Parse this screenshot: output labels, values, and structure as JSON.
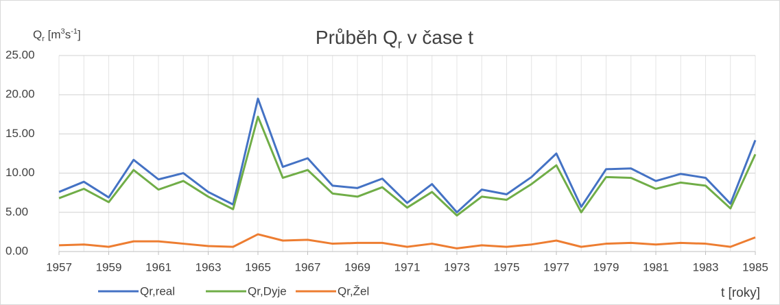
{
  "chart_data": {
    "type": "line",
    "title": [
      {
        "text": "Průběh Q"
      },
      {
        "text": "r",
        "sub": true
      },
      {
        "text": " v čase t"
      }
    ],
    "y_label": [
      {
        "text": "Q"
      },
      {
        "text": "r",
        "sub": true
      },
      {
        "text": " [m"
      },
      {
        "text": "3",
        "sup": true
      },
      {
        "text": "s"
      },
      {
        "text": "-1",
        "sup": true
      },
      {
        "text": "]"
      }
    ],
    "x_label": "t [roky]",
    "x": [
      1957,
      1958,
      1959,
      1960,
      1961,
      1962,
      1963,
      1964,
      1965,
      1966,
      1967,
      1968,
      1969,
      1970,
      1971,
      1972,
      1973,
      1974,
      1975,
      1976,
      1977,
      1978,
      1979,
      1980,
      1981,
      1982,
      1983,
      1984,
      1985
    ],
    "series": [
      {
        "name": "Qr,real",
        "color": "#4472c4",
        "values": [
          7.6,
          8.9,
          6.9,
          11.7,
          9.2,
          10.0,
          7.6,
          6.0,
          19.5,
          10.8,
          11.9,
          8.4,
          8.1,
          9.3,
          6.2,
          8.6,
          5.0,
          7.9,
          7.3,
          9.5,
          12.5,
          5.7,
          10.5,
          10.6,
          9.0,
          9.9,
          9.4,
          6.1,
          14.2
        ]
      },
      {
        "name": "Qr,Dyje",
        "color": "#70ad47",
        "values": [
          6.8,
          8.0,
          6.3,
          10.4,
          7.9,
          9.0,
          7.0,
          5.4,
          17.2,
          9.4,
          10.4,
          7.4,
          7.0,
          8.2,
          5.6,
          7.6,
          4.6,
          7.0,
          6.6,
          8.6,
          11.0,
          5.0,
          9.5,
          9.4,
          8.0,
          8.8,
          8.4,
          5.5,
          12.4
        ]
      },
      {
        "name": "Qr,Žel",
        "color": "#ed7d31",
        "values": [
          0.8,
          0.9,
          0.6,
          1.3,
          1.3,
          1.0,
          0.7,
          0.6,
          2.2,
          1.4,
          1.5,
          1.0,
          1.1,
          1.1,
          0.6,
          1.0,
          0.4,
          0.8,
          0.6,
          0.9,
          1.4,
          0.6,
          1.0,
          1.1,
          0.9,
          1.1,
          1.0,
          0.6,
          1.8
        ]
      }
    ],
    "xlim": [
      1957,
      1985
    ],
    "xticks": [
      1957,
      1959,
      1961,
      1963,
      1965,
      1967,
      1969,
      1971,
      1973,
      1975,
      1977,
      1979,
      1981,
      1983,
      1985
    ],
    "ylim": [
      0,
      25
    ],
    "yticks": [
      {
        "value": 0,
        "label": "0.00"
      },
      {
        "value": 5,
        "label": "5.00"
      },
      {
        "value": 10,
        "label": "10.00"
      },
      {
        "value": 15,
        "label": "15.00"
      },
      {
        "value": 20,
        "label": "20.00"
      },
      {
        "value": 25,
        "label": "25.00"
      }
    ],
    "grid": true,
    "legend": "bottom-left"
  }
}
